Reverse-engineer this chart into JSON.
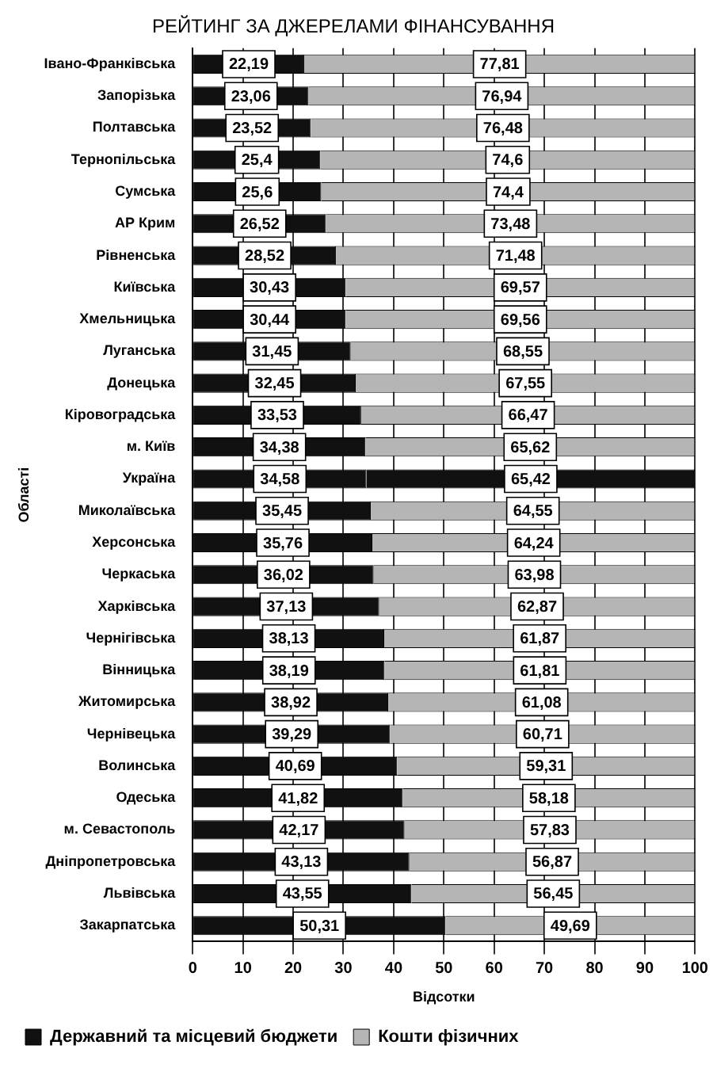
{
  "chart_data": {
    "type": "bar",
    "orientation": "horizontal",
    "stacked": true,
    "title": "РЕЙТИНГ ЗА ДЖЕРЕЛАМИ ФІНАНСУВАННЯ",
    "xlabel": "Відсотки",
    "ylabel": "Області",
    "categories": [
      "Івано-Франківська",
      "Запорізька",
      "Полтавська",
      "Тернопільська",
      "Сумська",
      "АР Крим",
      "Рівненська",
      "Київська",
      "Хмельницька",
      "Луганська",
      "Донецька",
      "Кіровоградська",
      "м. Київ",
      "Україна",
      "Миколаївська",
      "Херсонська",
      "Черкаська",
      "Харківська",
      "Чернігівська",
      "Вінницька",
      "Житомирська",
      "Чернівецька",
      "Волинська",
      "Одеська",
      "м. Севастополь",
      "Дніпропетровська",
      "Львівська",
      "Закарпатська"
    ],
    "series": [
      {
        "name": "Державний та місцевий бюджети",
        "color": "#111111",
        "values": [
          22.19,
          23.06,
          23.52,
          25.4,
          25.6,
          26.52,
          28.52,
          30.43,
          30.44,
          31.45,
          32.45,
          33.53,
          34.38,
          34.58,
          35.45,
          35.76,
          36.02,
          37.13,
          38.13,
          38.19,
          38.92,
          39.29,
          40.69,
          41.82,
          42.17,
          43.13,
          43.55,
          50.31
        ],
        "value_labels": [
          "22,19",
          "23,06",
          "23,52",
          "25,4",
          "25,6",
          "26,52",
          "28,52",
          "30,43",
          "30,44",
          "31,45",
          "32,45",
          "33,53",
          "34,38",
          "34,58",
          "35,45",
          "35,76",
          "36,02",
          "37,13",
          "38,13",
          "38,19",
          "38,92",
          "39,29",
          "40,69",
          "41,82",
          "42,17",
          "43,13",
          "43,55",
          "50,31"
        ]
      },
      {
        "name": "Кошти фізичних",
        "color": "#b5b5b5",
        "colors": [
          "#b5b5b5",
          "#b5b5b5",
          "#b5b5b5",
          "#b5b5b5",
          "#b5b5b5",
          "#b5b5b5",
          "#b5b5b5",
          "#b5b5b5",
          "#b5b5b5",
          "#b5b5b5",
          "#b5b5b5",
          "#b5b5b5",
          "#b5b5b5",
          "#111111",
          "#b5b5b5",
          "#b5b5b5",
          "#b5b5b5",
          "#b5b5b5",
          "#b5b5b5",
          "#b5b5b5",
          "#b5b5b5",
          "#b5b5b5",
          "#b5b5b5",
          "#b5b5b5",
          "#b5b5b5",
          "#b5b5b5",
          "#b5b5b5",
          "#b5b5b5"
        ],
        "values": [
          77.81,
          76.94,
          76.48,
          74.6,
          74.4,
          73.48,
          71.48,
          69.57,
          69.56,
          68.55,
          67.55,
          66.47,
          65.62,
          65.42,
          64.55,
          64.24,
          63.98,
          62.87,
          61.87,
          61.81,
          61.08,
          60.71,
          59.31,
          58.18,
          57.83,
          56.87,
          56.45,
          49.69
        ],
        "value_labels": [
          "77,81",
          "76,94",
          "76,48",
          "74,6",
          "74,4",
          "73,48",
          "71,48",
          "69,57",
          "69,56",
          "68,55",
          "67,55",
          "66,47",
          "65,62",
          "65,42",
          "64,55",
          "64,24",
          "63,98",
          "62,87",
          "61,87",
          "61,81",
          "61,08",
          "60,71",
          "59,31",
          "58,18",
          "57,83",
          "56,87",
          "56,45",
          "49,69"
        ]
      }
    ],
    "xlim": [
      0,
      100
    ],
    "xticks": [
      0,
      10,
      20,
      30,
      40,
      50,
      60,
      70,
      80,
      90,
      100
    ],
    "grid": "x",
    "legend": "bottom left"
  }
}
